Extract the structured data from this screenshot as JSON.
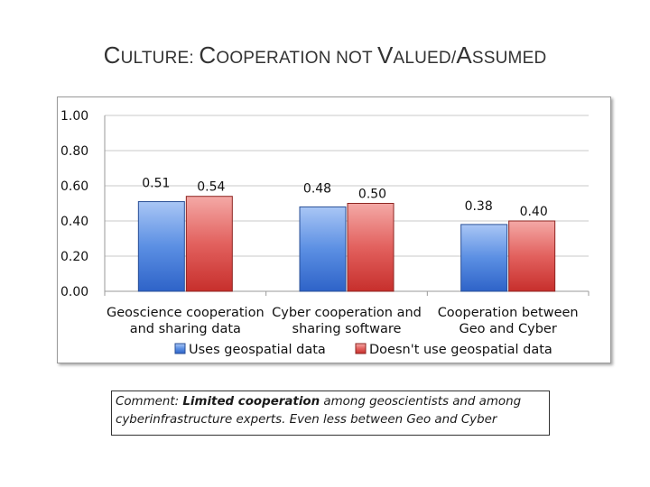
{
  "slide": {
    "title": "CULTURE: COOPERATION NOT VALUED/ASSUMED",
    "title_parts": {
      "c1": "C",
      "t1": "ULTURE: ",
      "c2": "C",
      "t2": "OOPERATION NOT ",
      "c3": "V",
      "t3": "ALUED/",
      "c4": "A",
      "t4": "SSUMED"
    }
  },
  "chart_data": {
    "type": "bar",
    "title": "",
    "xlabel": "",
    "ylabel": "",
    "ylim": [
      0,
      1
    ],
    "yticks": [
      "0.00",
      "0.20",
      "0.40",
      "0.60",
      "0.80",
      "1.00"
    ],
    "grid": true,
    "legend_position": "bottom",
    "categories": [
      [
        "Geoscience cooperation",
        "and sharing data"
      ],
      [
        "Cyber cooperation and",
        "sharing software"
      ],
      [
        "Cooperation between",
        "Geo and Cyber"
      ]
    ],
    "series": [
      {
        "name": "Uses geospatial data",
        "values": [
          0.51,
          0.48,
          0.38
        ],
        "labels": [
          "0.51",
          "0.48",
          "0.38"
        ],
        "color": "#4f86e0"
      },
      {
        "name": "Doesn't use geospatial data",
        "values": [
          0.54,
          0.5,
          0.4
        ],
        "labels": [
          "0.54",
          "0.50",
          "0.40"
        ],
        "color": "#e05a58"
      }
    ]
  },
  "comment": {
    "prefix": "Comment:  ",
    "emphasis": "Limited cooperation",
    "line1_rest": " among geoscientists and among",
    "line2": "cyberinfrastructure experts.  Even less between Geo and Cyber"
  }
}
